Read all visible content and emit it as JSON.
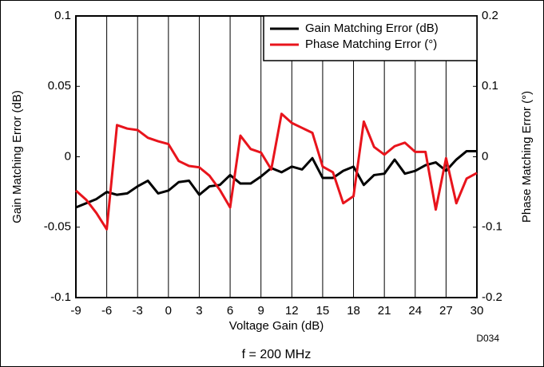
{
  "chart_data": {
    "type": "line",
    "xlabel": "Voltage Gain (dB)",
    "ylabel": "Gain Matching Error (dB)",
    "y2label": "Phase Matching Error (°)",
    "annotations": [
      "D034",
      "f = 200 MHz"
    ],
    "x": [
      -9,
      -8,
      -7,
      -6,
      -5,
      -4,
      -3,
      -2,
      -1,
      0,
      1,
      2,
      3,
      4,
      5,
      6,
      7,
      8,
      9,
      10,
      11,
      12,
      13,
      14,
      15,
      16,
      17,
      18,
      19,
      20,
      21,
      22,
      23,
      24,
      25,
      26,
      27,
      28,
      29,
      30
    ],
    "series": [
      {
        "name": "Gain Matching Error (dB)",
        "color": "#000000",
        "values": [
          -0.036,
          -0.033,
          -0.03,
          -0.025,
          -0.027,
          -0.026,
          -0.021,
          -0.017,
          -0.026,
          -0.024,
          -0.018,
          -0.017,
          -0.027,
          -0.021,
          -0.02,
          -0.013,
          -0.019,
          -0.019,
          -0.014,
          -0.008,
          -0.011,
          -0.007,
          -0.009,
          -0.001,
          -0.015,
          -0.015,
          -0.01,
          -0.007,
          -0.02,
          -0.013,
          -0.012,
          -0.002,
          -0.012,
          -0.01,
          -0.006,
          -0.004,
          -0.01,
          -0.002,
          0.004,
          0.004
        ]
      },
      {
        "name": "Phase Matching Error (°)",
        "color": "#e8141c",
        "axis": "y2",
        "values": [
          -0.048,
          -0.061,
          -0.08,
          -0.103,
          0.045,
          0.04,
          0.038,
          0.027,
          0.022,
          0.018,
          -0.006,
          -0.013,
          -0.015,
          -0.027,
          -0.047,
          -0.072,
          0.03,
          0.011,
          0.006,
          -0.018,
          0.061,
          0.048,
          0.041,
          0.034,
          -0.014,
          -0.022,
          -0.066,
          -0.056,
          0.05,
          0.014,
          0.003,
          0.015,
          0.02,
          0.007,
          0.007,
          -0.075,
          -0.002,
          -0.066,
          -0.031,
          -0.023
        ]
      }
    ],
    "xlim": [
      -9,
      30
    ],
    "xticks": [
      -9,
      -6,
      -3,
      0,
      3,
      6,
      9,
      12,
      15,
      18,
      21,
      24,
      27,
      30
    ],
    "ylim": [
      -0.1,
      0.1
    ],
    "yticks": [
      -0.1,
      -0.05,
      0,
      0.05,
      0.1
    ],
    "y2lim": [
      -0.2,
      0.2
    ],
    "y2ticks": [
      -0.2,
      -0.1,
      0,
      0.1,
      0.2
    ],
    "grid": "x",
    "legend": "upper right"
  }
}
